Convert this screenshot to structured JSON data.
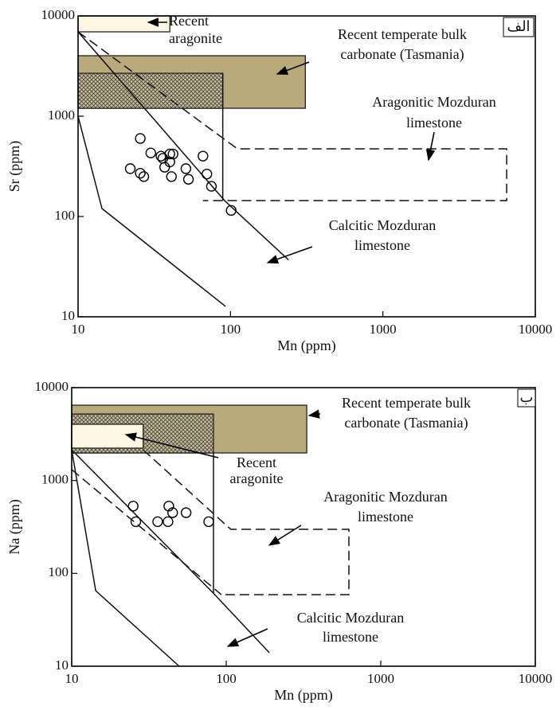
{
  "chart_data": [
    {
      "type": "scatter",
      "xlabel": "Mn (ppm)",
      "ylabel": "Sr (ppm)",
      "label": "الف",
      "xscale": "log",
      "yscale": "log",
      "xlim": [
        10,
        10000
      ],
      "ylim": [
        10,
        10000
      ],
      "xticks": [
        10,
        100,
        1000,
        10000
      ],
      "yticks": [
        10,
        100,
        1000,
        10000
      ],
      "x": [
        25.6,
        22,
        25.6,
        27,
        30,
        35,
        36,
        40,
        42,
        37,
        40,
        41,
        51,
        53,
        66,
        70,
        75,
        101
      ],
      "y": [
        600,
        300,
        270,
        250,
        430,
        400,
        380,
        420,
        420,
        310,
        350,
        250,
        300,
        235,
        400,
        265,
        200,
        115
      ],
      "regions": [
        {
          "shape": "rect",
          "x": [
            10,
            310
          ],
          "y": [
            1200,
            4010
          ],
          "fill": "#b9aa7c"
        },
        {
          "shape": "rect",
          "x": [
            10,
            89
          ],
          "y": [
            1200,
            2680
          ],
          "fill": "hatch"
        },
        {
          "shape": "rect",
          "x": [
            10,
            40
          ],
          "y": [
            6940,
            10000
          ],
          "fill": "#fdf6e3"
        },
        {
          "shape": "line",
          "x": [
            10,
            111,
            6490,
            6490,
            66
          ],
          "y": [
            6940,
            473,
            473,
            144,
            144
          ],
          "dashed": true
        },
        {
          "shape": "line",
          "x": [
            10,
            91.5,
            240
          ],
          "y": [
            6940,
            144,
            37
          ],
          "dashed": false
        },
        {
          "shape": "line",
          "x": [
            89,
            89
          ],
          "y": [
            2680,
            144
          ],
          "dashed": false
        },
        {
          "shape": "line",
          "x": [
            10,
            14.35,
            92.8
          ],
          "y": [
            1000,
            120,
            12.7
          ],
          "dashed": false
        }
      ],
      "annotations": [
        {
          "text": [
            "Recent",
            "aragonite"
          ]
        },
        {
          "text": [
            "Recent temperate bulk",
            "carbonate (Tasmania)"
          ]
        },
        {
          "text": [
            "Aragonitic Mozduran",
            "limestone"
          ]
        },
        {
          "text": [
            "Calcitic Mozduran",
            "limestone"
          ]
        }
      ]
    },
    {
      "type": "scatter",
      "xlabel": "Mn (ppm)",
      "ylabel": "Na (ppm)",
      "label": "ب",
      "xscale": "log",
      "yscale": "log",
      "xlim": [
        10,
        10000
      ],
      "ylim": [
        10,
        10000
      ],
      "xticks": [
        10,
        100,
        1000,
        10000
      ],
      "yticks": [
        10,
        100,
        1000,
        10000
      ],
      "x": [
        25,
        26,
        36,
        42,
        42.5,
        45,
        55,
        77
      ],
      "y": [
        530,
        360,
        360,
        360,
        530,
        450,
        450,
        360
      ],
      "regions": [
        {
          "shape": "rect",
          "x": [
            10,
            332
          ],
          "y": [
            1980,
            6470
          ],
          "fill": "#b9aa7c"
        },
        {
          "shape": "rect",
          "x": [
            10,
            82.7
          ],
          "y": [
            1980,
            5200
          ],
          "fill": "hatch"
        },
        {
          "shape": "rect",
          "x": [
            10,
            29
          ],
          "y": [
            2230,
            4030
          ],
          "fill": "#fdf6e3"
        },
        {
          "shape": "line",
          "x": [
            29,
            107,
            622,
            622,
            93
          ],
          "y": [
            2140,
            298,
            298,
            59,
            59
          ],
          "dashed": true
        },
        {
          "shape": "line",
          "x": [
            10,
            93
          ],
          "y": [
            1310,
            59
          ],
          "dashed": true
        },
        {
          "shape": "line",
          "x": [
            10,
            82.7,
            190
          ],
          "y": [
            2140,
            61,
            14
          ],
          "dashed": false
        },
        {
          "shape": "line",
          "x": [
            82.7,
            82.7
          ],
          "y": [
            1980,
            61
          ],
          "dashed": false
        },
        {
          "shape": "line",
          "x": [
            10,
            14.3,
            49.6
          ],
          "y": [
            2140,
            65,
            10
          ],
          "dashed": false
        }
      ],
      "annotations": [
        {
          "text": [
            "Recent temperate bulk",
            "carbonate (Tasmania)"
          ]
        },
        {
          "text": [
            "Recent",
            "aragonite"
          ]
        },
        {
          "text": [
            "Aragonitic Mozduran",
            "limestone"
          ]
        },
        {
          "text": [
            "Calcitic Mozduran",
            "limestone"
          ]
        }
      ]
    }
  ]
}
